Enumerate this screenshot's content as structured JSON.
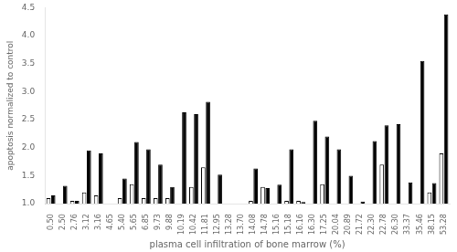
{
  "chart_data": {
    "type": "bar",
    "xlabel": "plasma cell infiltration of bone marrow (%)",
    "ylabel": "apoptosis normalized to control",
    "categories": [
      "0.50",
      "2.50",
      "2.76",
      "3.12",
      "3.16",
      "4.65",
      "5.40",
      "5.65",
      "6.85",
      "9.73",
      "9.88",
      "10.19",
      "10.42",
      "11.81",
      "12.95",
      "13.28",
      "13.70",
      "14.08",
      "14.78",
      "15.16",
      "15.18",
      "16.16",
      "16.30",
      "17.25",
      "20.04",
      "20.89",
      "21.72",
      "22.30",
      "22.78",
      "26.30",
      "33.37",
      "35.46",
      "38.15",
      "53.28"
    ],
    "series": [
      {
        "color": "white",
        "values": [
          1.1,
          1.0,
          1.05,
          1.2,
          1.15,
          1.0,
          1.1,
          1.35,
          1.1,
          1.1,
          1.1,
          1.0,
          1.3,
          1.65,
          1.0,
          1.0,
          1.0,
          1.05,
          1.3,
          1.0,
          1.05,
          1.05,
          1.0,
          1.35,
          1.0,
          1.0,
          1.0,
          1.0,
          1.7,
          1.0,
          1.0,
          1.0,
          1.2,
          1.9
        ]
      },
      {
        "color": "black",
        "values": [
          1.15,
          1.32,
          1.05,
          1.95,
          1.9,
          1.0,
          1.45,
          2.1,
          1.97,
          1.7,
          1.3,
          2.63,
          2.6,
          2.82,
          1.52,
          1.0,
          1.0,
          1.63,
          1.28,
          1.34,
          1.97,
          1.03,
          2.48,
          2.2,
          1.97,
          1.5,
          1.04,
          2.12,
          2.4,
          2.42,
          1.38,
          3.55,
          1.37,
          4.38
        ]
      }
    ],
    "ylim": [
      1.0,
      4.5
    ],
    "yticks": [
      {
        "value": 1.0,
        "label": "1.0"
      },
      {
        "value": 1.5,
        "label": "1.5"
      },
      {
        "value": 2.0,
        "label": "2.0"
      },
      {
        "value": 2.5,
        "label": "2.5"
      },
      {
        "value": 3.0,
        "label": "3.0"
      },
      {
        "value": 3.5,
        "label": "3.5"
      },
      {
        "value": 4.0,
        "label": "4.0"
      },
      {
        "value": 4.5,
        "label": "4.5"
      }
    ],
    "grid": false
  }
}
